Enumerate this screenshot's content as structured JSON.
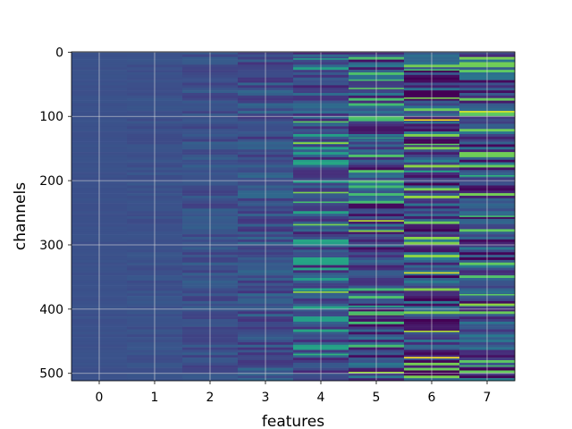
{
  "chart_data": {
    "type": "heatmap",
    "title": "",
    "xlabel": "features",
    "ylabel": "channels",
    "x_ticks": [
      "0",
      "1",
      "2",
      "3",
      "4",
      "5",
      "6",
      "7"
    ],
    "y_ticks": [
      "0",
      "100",
      "200",
      "300",
      "400",
      "500"
    ],
    "xlim": [
      -0.5,
      7.5
    ],
    "ylim": [
      511.5,
      -0.5
    ],
    "n_channels": 512,
    "n_features": 8,
    "grid": true,
    "colormap": "viridis",
    "colorbar": false,
    "column_value_spread": [
      0.02,
      0.05,
      0.12,
      0.2,
      0.32,
      0.45,
      0.55,
      0.5
    ],
    "bright_rows": [
      {
        "feature": 4,
        "channel": 10,
        "value": 0.55
      },
      {
        "feature": 4,
        "channel": 108,
        "value": 0.75
      },
      {
        "feature": 4,
        "channel": 141,
        "value": 0.85
      },
      {
        "feature": 4,
        "channel": 218,
        "value": 0.8
      },
      {
        "feature": 4,
        "channel": 233,
        "value": 0.7
      },
      {
        "feature": 4,
        "channel": 268,
        "value": 0.8
      },
      {
        "feature": 4,
        "channel": 373,
        "value": 0.85
      },
      {
        "feature": 4,
        "channel": 470,
        "value": 0.65
      },
      {
        "feature": 5,
        "channel": 43,
        "value": 0.7
      },
      {
        "feature": 5,
        "channel": 56,
        "value": 0.75
      },
      {
        "feature": 5,
        "channel": 133,
        "value": 0.6
      },
      {
        "feature": 5,
        "channel": 262,
        "value": 0.9
      },
      {
        "feature": 5,
        "channel": 278,
        "value": 0.85
      },
      {
        "feature": 5,
        "channel": 395,
        "value": 0.6
      },
      {
        "feature": 5,
        "channel": 408,
        "value": 0.75
      },
      {
        "feature": 5,
        "channel": 498,
        "value": 0.85
      },
      {
        "feature": 6,
        "channel": 27,
        "value": 0.7
      },
      {
        "feature": 6,
        "channel": 71,
        "value": 0.8
      },
      {
        "feature": 6,
        "channel": 105,
        "value": 1.0
      },
      {
        "feature": 6,
        "channel": 143,
        "value": 0.75
      },
      {
        "feature": 6,
        "channel": 185,
        "value": 0.6
      },
      {
        "feature": 6,
        "channel": 343,
        "value": 0.95
      },
      {
        "feature": 6,
        "channel": 434,
        "value": 0.9
      },
      {
        "feature": 6,
        "channel": 475,
        "value": 1.0
      },
      {
        "feature": 7,
        "channel": 92,
        "value": 0.95
      },
      {
        "feature": 7,
        "channel": 192,
        "value": 0.65
      },
      {
        "feature": 7,
        "channel": 255,
        "value": 0.7
      },
      {
        "feature": 7,
        "channel": 377,
        "value": 0.75
      },
      {
        "feature": 7,
        "channel": 392,
        "value": 0.85
      },
      {
        "feature": 7,
        "channel": 488,
        "value": 0.7
      }
    ]
  }
}
